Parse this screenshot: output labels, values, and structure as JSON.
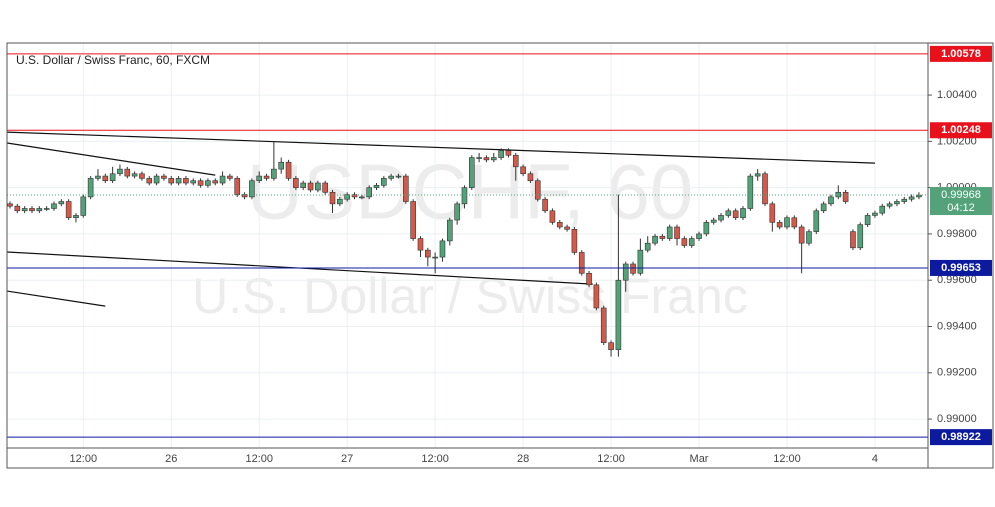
{
  "chart_data": {
    "type": "candlestick",
    "title": "U.S. Dollar / Swiss Franc, 60, FXCM",
    "watermark_symbol": "USDCHF, 60",
    "watermark_name": "U.S. Dollar / Swiss Franc",
    "categories": [
      null,
      null,
      null,
      null,
      null,
      null,
      null,
      null,
      null,
      null,
      "12:00",
      null,
      null,
      null,
      null,
      null,
      null,
      null,
      null,
      null,
      null,
      null,
      "26",
      null,
      null,
      null,
      null,
      null,
      null,
      null,
      null,
      null,
      null,
      null,
      "12:00",
      null,
      null,
      null,
      null,
      null,
      null,
      null,
      null,
      null,
      null,
      null,
      "27",
      null,
      null,
      null,
      null,
      null,
      null,
      null,
      null,
      null,
      null,
      null,
      "12:00",
      null,
      null,
      null,
      null,
      null,
      null,
      null,
      null,
      null,
      null,
      null,
      "28",
      null,
      null,
      null,
      null,
      null,
      null,
      null,
      null,
      null,
      null,
      null,
      "12:00",
      null,
      null,
      null,
      null,
      null,
      null,
      null,
      null,
      null,
      null,
      null,
      "Mar",
      null,
      null,
      null,
      null,
      null,
      null,
      null,
      null,
      null,
      null,
      null,
      "12:00",
      null,
      null,
      null,
      null,
      null,
      null,
      null,
      null,
      null,
      null,
      null,
      "4",
      null,
      null,
      null,
      null,
      null,
      null
    ],
    "open": [
      0.9993,
      0.9992,
      0.999,
      0.9991,
      0.999,
      0.9991,
      0.9991,
      0.9993,
      0.9994,
      0.9987,
      0.9988,
      0.9996,
      1.0004,
      1.0005,
      1.0003,
      1.0006,
      1.0008,
      1.0005,
      1.0006,
      1.0004,
      1.0002,
      1.0005,
      1.0004,
      1.0002,
      1.0004,
      1.0002,
      1.0003,
      1.0001,
      1.0003,
      1.0002,
      1.0005,
      1.0004,
      0.9997,
      0.9996,
      1.0003,
      1.0005,
      1.0004,
      1.0008,
      1.0011,
      1.0004,
      1.0,
      1.0002,
      0.9999,
      1.0002,
      0.9998,
      0.9993,
      0.9995,
      0.9997,
      0.9996,
      0.9996,
      1.0,
      1.0001,
      1.0004,
      1.0005,
      1.0005,
      0.9994,
      0.9978,
      0.9973,
      0.997,
      0.997,
      0.9977,
      0.9986,
      0.9993,
      1.0,
      1.0013,
      1.0013,
      1.0012,
      1.0013,
      1.0016,
      1.0014,
      1.0009,
      1.0006,
      1.0003,
      0.9995,
      0.999,
      0.9985,
      0.9983,
      0.9982,
      0.9972,
      0.9963,
      0.9958,
      0.9948,
      0.9933,
      0.993,
      0.996,
      0.9967,
      0.9963,
      0.9973,
      0.9976,
      0.9979,
      0.9978,
      0.9983,
      0.9978,
      0.9975,
      0.9978,
      0.998,
      0.9985,
      0.9986,
      0.9988,
      0.999,
      0.9987,
      0.9991,
      1.0005,
      1.0006,
      0.9993,
      0.9985,
      0.9983,
      0.9987,
      0.9983,
      0.9976,
      0.9981,
      0.999,
      0.9993,
      0.9996,
      0.9998,
      0.9981,
      0.9974,
      0.9984,
      0.9988,
      0.9989,
      0.9992,
      0.9993,
      0.9994,
      0.9995,
      0.9996
    ],
    "high": [
      0.9994,
      0.9993,
      0.9992,
      0.9992,
      0.9992,
      0.9992,
      0.9994,
      0.9995,
      0.9995,
      0.9989,
      0.9997,
      1.0005,
      1.0008,
      1.0006,
      1.0009,
      1.001,
      1.0009,
      1.0007,
      1.0007,
      1.0005,
      1.0006,
      1.0006,
      1.0005,
      1.0005,
      1.0005,
      1.0004,
      1.0004,
      1.0004,
      1.0004,
      1.0007,
      1.0006,
      1.0005,
      0.9998,
      1.0004,
      1.0007,
      1.0006,
      1.002,
      1.0013,
      1.0012,
      1.0005,
      1.0003,
      1.0003,
      1.0003,
      1.0003,
      0.9999,
      0.9996,
      0.9998,
      0.9998,
      0.9997,
      1.0001,
      1.0002,
      1.0005,
      1.0006,
      1.0006,
      1.0006,
      0.9995,
      0.9979,
      0.9974,
      0.9972,
      0.9978,
      0.9987,
      0.9994,
      1.0001,
      1.0014,
      1.0015,
      1.0014,
      1.0015,
      1.0017,
      1.0017,
      1.0015,
      1.001,
      1.0007,
      1.0004,
      0.9996,
      0.9991,
      0.9986,
      0.9984,
      0.9983,
      0.9973,
      0.9964,
      0.9959,
      0.9949,
      0.9934,
      0.9997,
      0.9968,
      0.9968,
      0.9978,
      0.9979,
      0.998,
      0.998,
      0.9984,
      0.9984,
      0.9979,
      0.9979,
      0.9981,
      0.9986,
      0.9987,
      0.9989,
      0.9991,
      0.9991,
      0.9992,
      1.0006,
      1.0008,
      1.0007,
      0.9994,
      0.9986,
      0.9988,
      0.9988,
      0.9984,
      0.9982,
      0.9991,
      0.9994,
      0.9997,
      1.0001,
      0.9999,
      0.9982,
      0.9985,
      0.9989,
      0.999,
      0.9993,
      0.9994,
      0.9995,
      0.9996,
      0.9997,
      0.9998
    ],
    "low": [
      0.9991,
      0.9989,
      0.9989,
      0.9989,
      0.9989,
      0.999,
      0.999,
      0.9992,
      0.9986,
      0.9985,
      0.9987,
      0.9995,
      1.0003,
      1.0002,
      1.0002,
      1.0005,
      1.0004,
      1.0004,
      1.0003,
      1.0001,
      1.0001,
      1.0003,
      1.0001,
      1.0001,
      1.0001,
      1.0001,
      1.0,
      1.0,
      1.0001,
      1.0001,
      1.0003,
      0.9996,
      0.9995,
      0.9995,
      1.0002,
      1.0003,
      1.0003,
      1.0006,
      1.0003,
      0.9999,
      0.9999,
      0.9998,
      0.9998,
      0.9997,
      0.9989,
      0.9992,
      0.9994,
      0.9995,
      0.9995,
      0.9995,
      0.9999,
      1.0,
      1.0003,
      1.0004,
      0.9993,
      0.9977,
      0.997,
      0.9966,
      0.9963,
      0.9968,
      0.9975,
      0.9984,
      0.9991,
      0.9999,
      1.0011,
      1.0011,
      1.0011,
      1.0012,
      1.0013,
      1.0003,
      1.0005,
      1.0002,
      0.9994,
      0.9989,
      0.9984,
      0.9982,
      0.9981,
      0.9971,
      0.9962,
      0.9957,
      0.9947,
      0.9932,
      0.9927,
      0.9927,
      0.9955,
      0.9962,
      0.9962,
      0.9972,
      0.9975,
      0.9977,
      0.9977,
      0.9975,
      0.9974,
      0.9974,
      0.9977,
      0.9979,
      0.9984,
      0.9985,
      0.9987,
      0.9986,
      0.9986,
      0.999,
      1.0003,
      0.9992,
      0.9981,
      0.9982,
      0.9982,
      0.9982,
      0.9963,
      0.9975,
      0.998,
      0.9989,
      0.9992,
      0.9995,
      0.9993,
      0.9973,
      0.9973,
      0.9983,
      0.9987,
      0.9988,
      0.9991,
      0.9992,
      0.9993,
      0.9994,
      0.9995
    ],
    "close": [
      0.9992,
      0.999,
      0.9991,
      0.999,
      0.9991,
      0.9991,
      0.9993,
      0.9994,
      0.9987,
      0.9988,
      0.9996,
      1.0004,
      1.0005,
      1.0003,
      1.0006,
      1.0008,
      1.0005,
      1.0006,
      1.0004,
      1.0002,
      1.0005,
      1.0004,
      1.0002,
      1.0004,
      1.0002,
      1.0003,
      1.0001,
      1.0003,
      1.0002,
      1.0005,
      1.0004,
      0.9997,
      0.9996,
      1.0003,
      1.0005,
      1.0004,
      1.0008,
      1.0011,
      1.0004,
      1.0,
      1.0002,
      0.9999,
      1.0002,
      0.9998,
      0.9993,
      0.9995,
      0.9997,
      0.9996,
      0.9996,
      1.0,
      1.0001,
      1.0004,
      1.0005,
      1.0005,
      0.9994,
      0.9978,
      0.9973,
      0.997,
      0.997,
      0.9977,
      0.9986,
      0.9993,
      1.0,
      1.0013,
      1.0013,
      1.0012,
      1.0013,
      1.0016,
      1.0014,
      1.0009,
      1.0006,
      1.0003,
      0.9995,
      0.999,
      0.9985,
      0.9983,
      0.9982,
      0.9972,
      0.9963,
      0.9958,
      0.9948,
      0.9933,
      0.993,
      0.996,
      0.9967,
      0.9963,
      0.9973,
      0.9976,
      0.9979,
      0.9978,
      0.9983,
      0.9978,
      0.9975,
      0.9978,
      0.998,
      0.9985,
      0.9986,
      0.9988,
      0.999,
      0.9987,
      0.9991,
      1.0005,
      1.0006,
      0.9993,
      0.9985,
      0.9983,
      0.9987,
      0.9983,
      0.9976,
      0.9981,
      0.999,
      0.9993,
      0.9996,
      0.9998,
      0.9994,
      0.9974,
      0.9984,
      0.9988,
      0.9989,
      0.9992,
      0.9993,
      0.9994,
      0.9995,
      0.9996,
      0.99968
    ],
    "up_color": "#53a27a",
    "down_color": "#d35a4a",
    "ylim": [
      0.98875,
      1.00625
    ],
    "yticks": [
      {
        "value": 0.99,
        "label": "0.99000"
      },
      {
        "value": 0.992,
        "label": "0.99200"
      },
      {
        "value": 0.994,
        "label": "0.99400"
      },
      {
        "value": 0.996,
        "label": "0.99600"
      },
      {
        "value": 0.998,
        "label": "0.99800"
      },
      {
        "value": 1.0,
        "label": "1.00000"
      },
      {
        "value": 1.002,
        "label": "1.00200"
      },
      {
        "value": 1.004,
        "label": "1.00400"
      }
    ],
    "grid": true,
    "levels": [
      {
        "value": 1.00578,
        "color": "#e8101a"
      },
      {
        "value": 1.00248,
        "color": "#e8101a"
      },
      {
        "value": 0.99653,
        "color": "#0c1aa0"
      },
      {
        "value": 0.98922,
        "color": "#0c1aa0"
      }
    ],
    "last_price": {
      "value": 0.99968,
      "countdown": "04:12",
      "color": "#53a27a"
    },
    "trendlines": [
      {
        "x": [
          -0.4,
          118
        ],
        "y": [
          1.0024,
          1.00106
        ]
      },
      {
        "x": [
          -0.4,
          28
        ],
        "y": [
          1.00193,
          1.00054
        ]
      },
      {
        "x": [
          -0.4,
          79.5
        ],
        "y": [
          0.99722,
          0.99583
        ]
      },
      {
        "x": [
          -0.4,
          13
        ],
        "y": [
          0.99553,
          0.99488
        ]
      }
    ]
  }
}
